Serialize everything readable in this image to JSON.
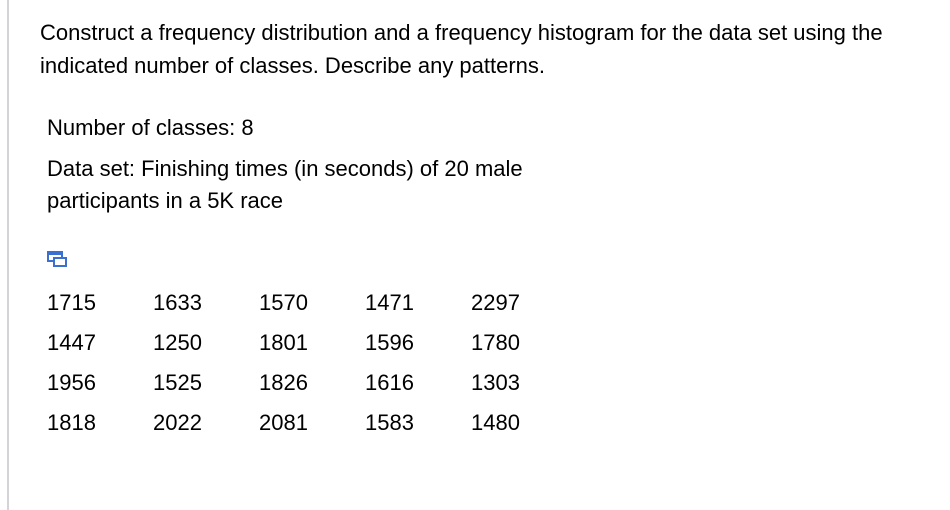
{
  "question": "Construct a frequency distribution and a frequency histogram for the data set using the indicated number of classes. Describe any patterns.",
  "classes": "Number of classes: 8",
  "data_set": "Data set: Finishing times (in seconds) of 20 male participants in a 5K race",
  "table": {
    "rows": [
      [
        1715,
        1633,
        1570,
        1471,
        2297
      ],
      [
        1447,
        1250,
        1801,
        1596,
        1780
      ],
      [
        1956,
        1525,
        1826,
        1616,
        1303
      ],
      [
        1818,
        2022,
        2081,
        1583,
        1480
      ]
    ]
  }
}
